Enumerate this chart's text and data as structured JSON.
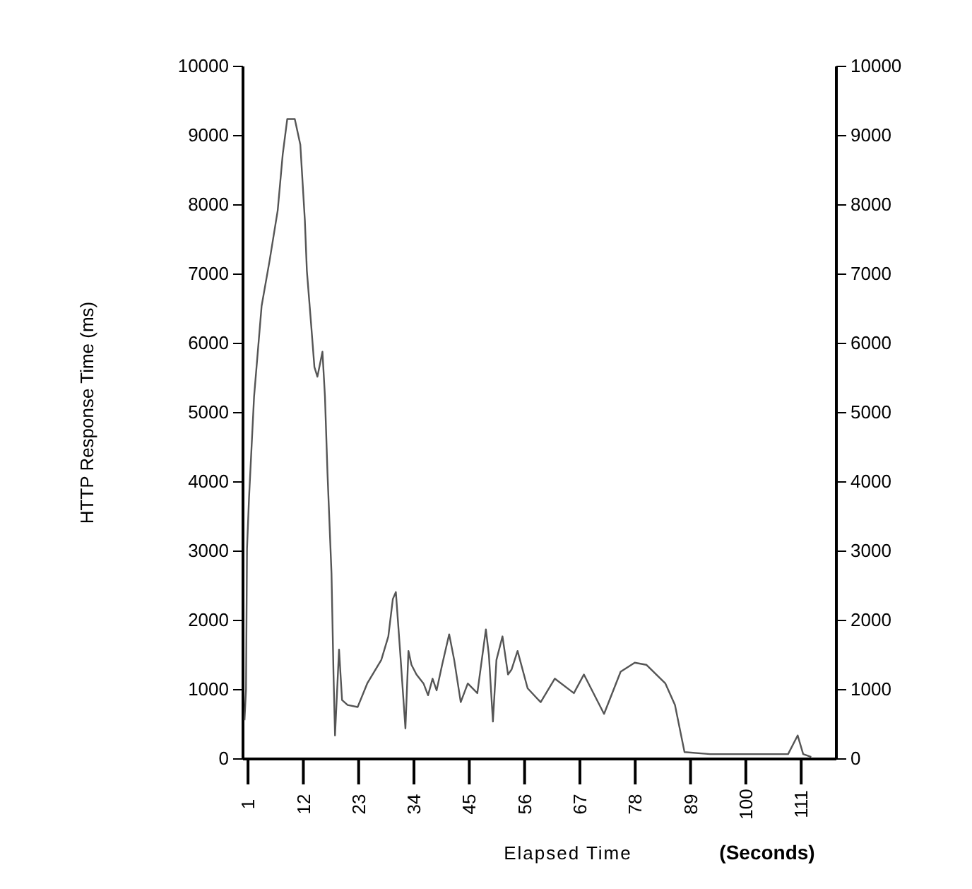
{
  "chart_data": {
    "type": "line",
    "xlabel": "Elapsed Time",
    "annotations": [
      "(Seconds)"
    ],
    "ylabel": "HTTP Response Time (ms)",
    "xlim": [
      0,
      118
    ],
    "xticks": [
      1,
      12,
      23,
      34,
      45,
      56,
      67,
      78,
      89,
      100,
      111
    ],
    "ylim": [
      0,
      10000
    ],
    "yticks": [
      0,
      1000,
      2000,
      3000,
      4000,
      5000,
      6000,
      7000,
      8000,
      9000,
      10000
    ],
    "y2lim": [
      0,
      10000
    ],
    "y2ticks": [
      0,
      1000,
      2000,
      3000,
      4000,
      5000,
      6000,
      7000,
      8000,
      9000,
      10000
    ],
    "grid": false,
    "marker": "none",
    "line_style": "solid",
    "series": [
      {
        "color": "#555555",
        "x": [
          0.3,
          0.6,
          0.8,
          1.2,
          2.2,
          3.7,
          5.3,
          6.9,
          7.9,
          8.8,
          10.3,
          11.4,
          12.3,
          12.7,
          13.5,
          14.2,
          14.8,
          15.8,
          16.3,
          16.8,
          17.6,
          18,
          18.3,
          19.1,
          19.7,
          20.8,
          22.8,
          24.7,
          27.5,
          28.9,
          29.8,
          30.4,
          31.2,
          32.3,
          32.9,
          33.5,
          34.5,
          35.9,
          36.8,
          37.7,
          38.5,
          39.6,
          41,
          42,
          43.3,
          44.7,
          46.6,
          48.3,
          48.9,
          49.7,
          50.4,
          51.6,
          52.7,
          53.4,
          54.6,
          56.6,
          59.2,
          62,
          65.8,
          67.8,
          71.8,
          75.1,
          77.9,
          80.2,
          84,
          85.9,
          87.8,
          92.9,
          103.2,
          108.4,
          110.3,
          111.4,
          113
        ],
        "values": [
          560,
          1000,
          3040,
          3770,
          5230,
          6540,
          7200,
          7920,
          8730,
          9240,
          9240,
          8870,
          7780,
          7050,
          6320,
          5660,
          5520,
          5880,
          5230,
          4130,
          2680,
          1220,
          340,
          1580,
          850,
          780,
          750,
          1090,
          1430,
          1770,
          2310,
          2410,
          1600,
          440,
          1560,
          1360,
          1220,
          1090,
          920,
          1160,
          990,
          1360,
          1800,
          1430,
          820,
          1090,
          950,
          1870,
          1500,
          540,
          1430,
          1770,
          1220,
          1290,
          1560,
          1020,
          820,
          1160,
          950,
          1220,
          650,
          1260,
          1390,
          1360,
          1090,
          780,
          100,
          70,
          70,
          70,
          340,
          70,
          30
        ]
      }
    ]
  }
}
